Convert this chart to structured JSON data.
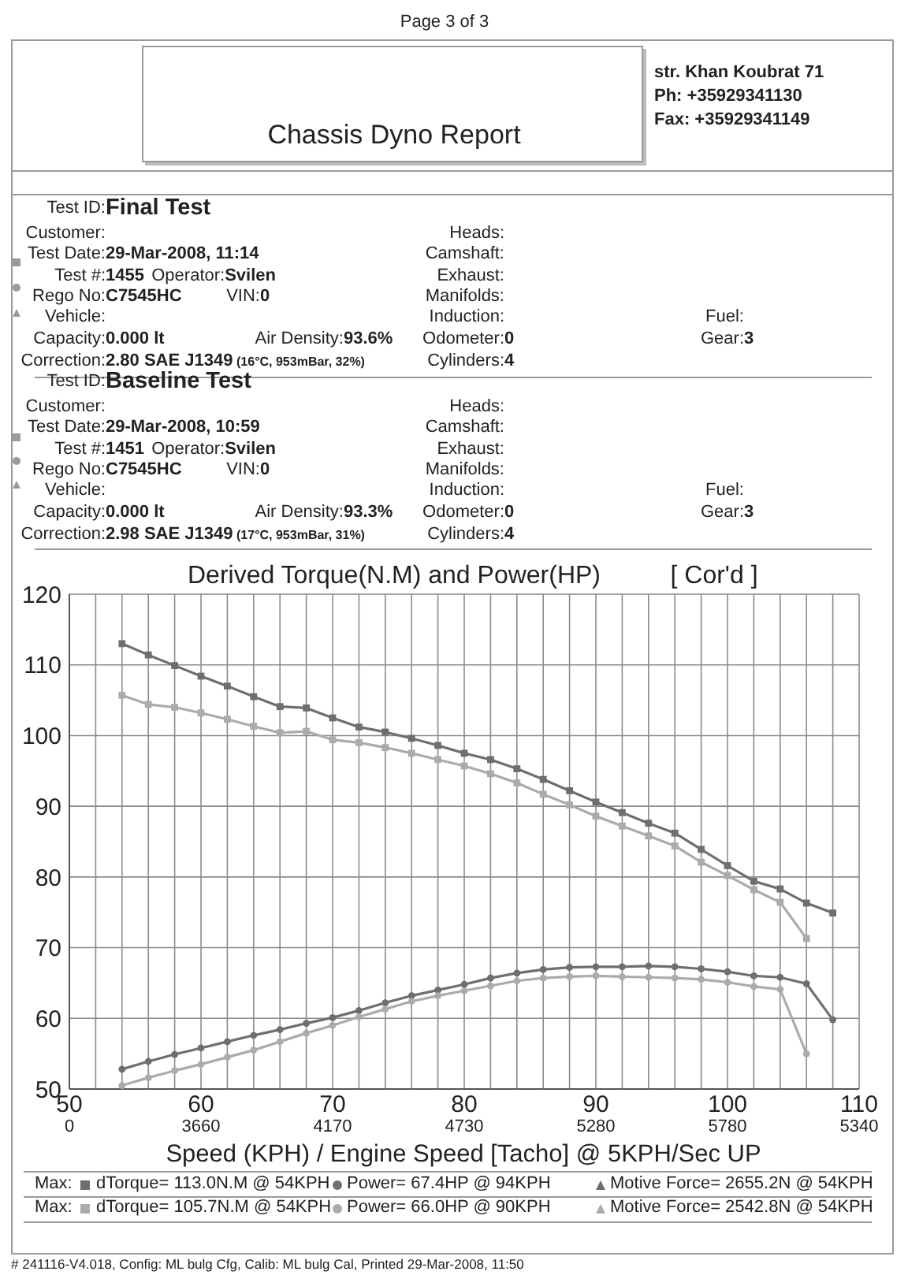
{
  "chart_data": {
    "type": "line",
    "title": "Derived Torque(N.M) and Power(HP)",
    "subtitle": "[ Cor'd ]",
    "xlabel": "Speed (KPH) / Engine Speed [Tacho] @ 5KPH/Sec UP",
    "annotations": [
      "Page 3 of 3",
      "Chassis Dyno Report",
      "str. Khan Koubrat 71",
      "Ph: +35929341130",
      "Fax: +35929341149",
      "Test ID:",
      "Final Test",
      "Customer:",
      "Test Date:",
      "29-Mar-2008, 11:14",
      "Test #:",
      "1455",
      "Operator:",
      "Svilen",
      "Rego No:",
      "C7545HC",
      "VIN:",
      "0",
      "Vehicle:",
      "Capacity:",
      "0.000 lt",
      "Air Density:",
      "93.6%",
      "Correction:",
      "2.80 SAE J1349",
      "(16°C, 953mBar, 32%)",
      "Heads:",
      "Camshaft:",
      "Exhaust:",
      "Manifolds:",
      "Induction:",
      "Odometer:",
      "0",
      "Cylinders:",
      "4",
      "Fuel:",
      "Gear:",
      "3",
      "Test ID:",
      "Baseline Test",
      "Customer:",
      "Test Date:",
      "29-Mar-2008, 10:59",
      "Test #:",
      "1451",
      "Operator:",
      "Svilen",
      "Rego No:",
      "C7545HC",
      "VIN:",
      "0",
      "Vehicle:",
      "Capacity:",
      "0.000 lt",
      "Air Density:",
      "93.3%",
      "Correction:",
      "2.98 SAE J1349",
      "(17°C, 953mBar, 31%)",
      "Heads:",
      "Camshaft:",
      "Exhaust:",
      "Manifolds:",
      "Induction:",
      "Odometer:",
      "0",
      "Cylinders:",
      "4",
      "Fuel:",
      "Gear:",
      "3",
      "Max:",
      "dTorque= 113.0N.M @ 54KPH",
      "Power= 67.4HP @ 94KPH",
      "Motive Force= 2655.2N @ 54KPH",
      "Max:",
      "dTorque= 105.7N.M @ 54KPH",
      "Power= 66.0HP @ 90KPH",
      "Motive Force= 2542.8N @ 54KPH",
      "# 241116-V4.018, Config: ML bulg Cfg, Calib: ML bulg Cal, Printed 29-Mar-2008, 11:50",
      "0",
      "3660",
      "4170",
      "4730",
      "5280",
      "5780",
      "5340"
    ],
    "x": [
      54,
      56,
      58,
      60,
      62,
      64,
      66,
      68,
      70,
      72,
      74,
      76,
      78,
      80,
      82,
      84,
      86,
      88,
      90,
      92,
      94,
      96,
      98,
      100,
      102,
      104,
      106,
      108
    ],
    "series": [
      {
        "color": "#6e6e6e",
        "marker": "square",
        "values": [
          113.0,
          111.4,
          109.9,
          108.4,
          107.0,
          105.5,
          104.1,
          103.9,
          102.5,
          101.2,
          100.5,
          99.6,
          98.6,
          97.5,
          96.6,
          95.3,
          93.8,
          92.2,
          90.6,
          89.1,
          87.6,
          86.2,
          83.9,
          81.6,
          79.4,
          78.3,
          76.3,
          74.9
        ]
      },
      {
        "color": "#ababab",
        "marker": "square",
        "values": [
          105.7,
          104.4,
          104.0,
          103.2,
          102.3,
          101.3,
          100.4,
          100.6,
          99.4,
          99.0,
          98.3,
          97.5,
          96.6,
          95.7,
          94.6,
          93.3,
          91.7,
          90.2,
          88.6,
          87.2,
          85.8,
          84.4,
          82.1,
          80.2,
          78.2,
          76.4,
          71.3,
          null
        ]
      },
      {
        "color": "#6e6e6e",
        "marker": "circle",
        "values": [
          52.8,
          53.9,
          54.9,
          55.8,
          56.7,
          57.6,
          58.4,
          59.3,
          60.1,
          61.1,
          62.2,
          63.2,
          64.0,
          64.8,
          65.7,
          66.4,
          66.9,
          67.2,
          67.3,
          67.3,
          67.4,
          67.3,
          67.0,
          66.6,
          66.0,
          65.8,
          64.9,
          59.8
        ]
      },
      {
        "color": "#ababab",
        "marker": "circle",
        "values": [
          50.5,
          51.6,
          52.6,
          53.5,
          54.5,
          55.5,
          56.7,
          57.9,
          59.0,
          60.2,
          61.3,
          62.4,
          63.2,
          63.9,
          64.6,
          65.3,
          65.7,
          65.9,
          66.0,
          65.9,
          65.8,
          65.7,
          65.5,
          65.1,
          64.5,
          64.1,
          55.0,
          null
        ]
      }
    ],
    "xlim": [
      50,
      110
    ],
    "xticks": [
      50,
      {
        "value": 52,
        "label": null
      },
      {
        "value": 54,
        "label": null
      },
      {
        "value": 56,
        "label": null
      },
      {
        "value": 58,
        "label": null
      },
      60,
      {
        "value": 62,
        "label": null
      },
      {
        "value": 64,
        "label": null
      },
      {
        "value": 66,
        "label": null
      },
      {
        "value": 68,
        "label": null
      },
      70,
      {
        "value": 72,
        "label": null
      },
      {
        "value": 74,
        "label": null
      },
      {
        "value": 76,
        "label": null
      },
      {
        "value": 78,
        "label": null
      },
      80,
      {
        "value": 82,
        "label": null
      },
      {
        "value": 84,
        "label": null
      },
      {
        "value": 86,
        "label": null
      },
      {
        "value": 88,
        "label": null
      },
      90,
      {
        "value": 92,
        "label": null
      },
      {
        "value": 94,
        "label": null
      },
      {
        "value": 96,
        "label": null
      },
      {
        "value": 98,
        "label": null
      },
      100,
      {
        "value": 102,
        "label": null
      },
      {
        "value": 104,
        "label": null
      },
      {
        "value": 106,
        "label": null
      },
      {
        "value": 108,
        "label": null
      },
      110
    ],
    "ylim": [
      50,
      120
    ],
    "yticks": [
      50,
      60,
      70,
      80,
      90,
      100,
      110,
      120
    ],
    "grid": true
  }
}
